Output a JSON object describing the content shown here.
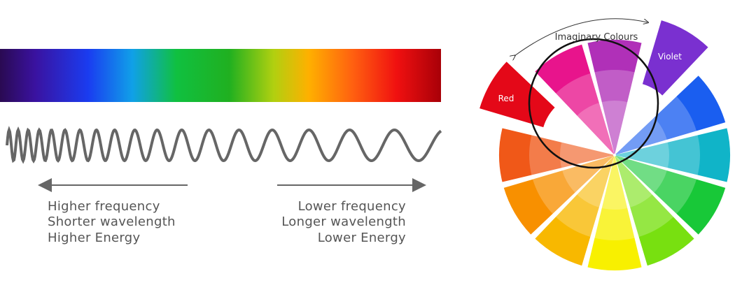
{
  "spectrum": {
    "left_labels": [
      "Higher frequency",
      "Shorter wavelength",
      "Higher Energy"
    ],
    "right_labels": [
      "Lower frequency",
      "Longer wavelength",
      "Lower Energy"
    ]
  },
  "color_wheel": {
    "arc_label": "Imaginary Colours",
    "red_label": "Red",
    "violet_label": "Violet"
  }
}
